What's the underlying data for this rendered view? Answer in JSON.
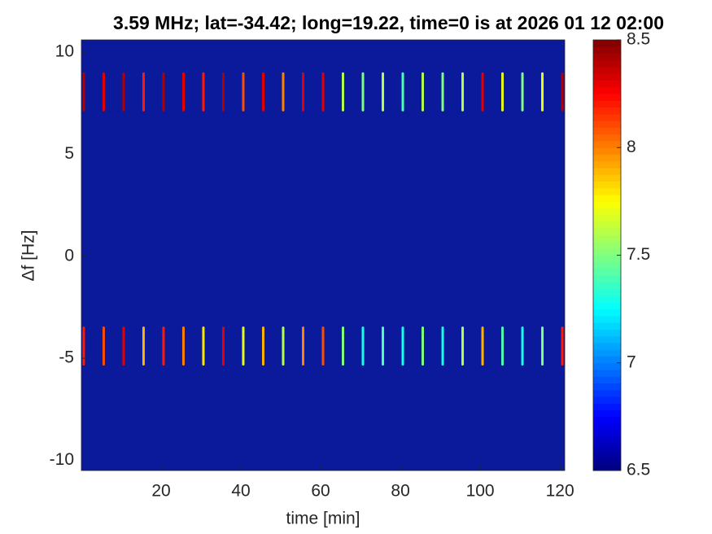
{
  "chart_data": {
    "type": "heatmap",
    "title": "3.59 MHz;  lat=-34.42; long=19.22, time=0 is at 2026 01 12 02:00",
    "x_label": "time [min]",
    "y_label": "Δf [Hz]",
    "x": [
      0.6,
      5.6,
      10.6,
      15.6,
      20.6,
      25.6,
      30.6,
      35.6,
      40.6,
      45.6,
      50.6,
      55.6,
      60.6,
      65.6,
      70.6,
      75.6,
      80.6,
      85.6,
      90.6,
      95.6,
      100.6,
      105.6,
      110.6,
      115.6,
      120.6
    ],
    "y": [
      8.05,
      -4.4
    ],
    "values": [
      [
        8.4,
        8.3,
        8.4,
        8.2,
        8.4,
        8.3,
        8.2,
        8.4,
        8.1,
        8.3,
        8.0,
        8.3,
        8.3,
        7.6,
        7.5,
        7.6,
        7.4,
        7.6,
        7.5,
        7.6,
        8.3,
        7.7,
        7.5,
        7.7,
        8.4
      ],
      [
        8.2,
        8.1,
        8.3,
        7.9,
        8.2,
        8.0,
        7.8,
        8.3,
        7.7,
        7.9,
        7.6,
        8.0,
        8.1,
        7.5,
        7.3,
        7.4,
        7.3,
        7.5,
        7.3,
        7.6,
        7.9,
        7.4,
        7.3,
        7.5,
        8.2
      ]
    ],
    "xlim": [
      0,
      121.2
    ],
    "ylim": [
      -10.5,
      10.6
    ],
    "xticks": [
      20,
      40,
      60,
      80,
      100,
      120
    ],
    "yticks": [
      -10,
      -5,
      0,
      5,
      10
    ],
    "clim": [
      6.5,
      8.5
    ],
    "cticks": [
      6.5,
      7,
      7.5,
      8,
      8.5
    ],
    "colormap": "jet"
  }
}
